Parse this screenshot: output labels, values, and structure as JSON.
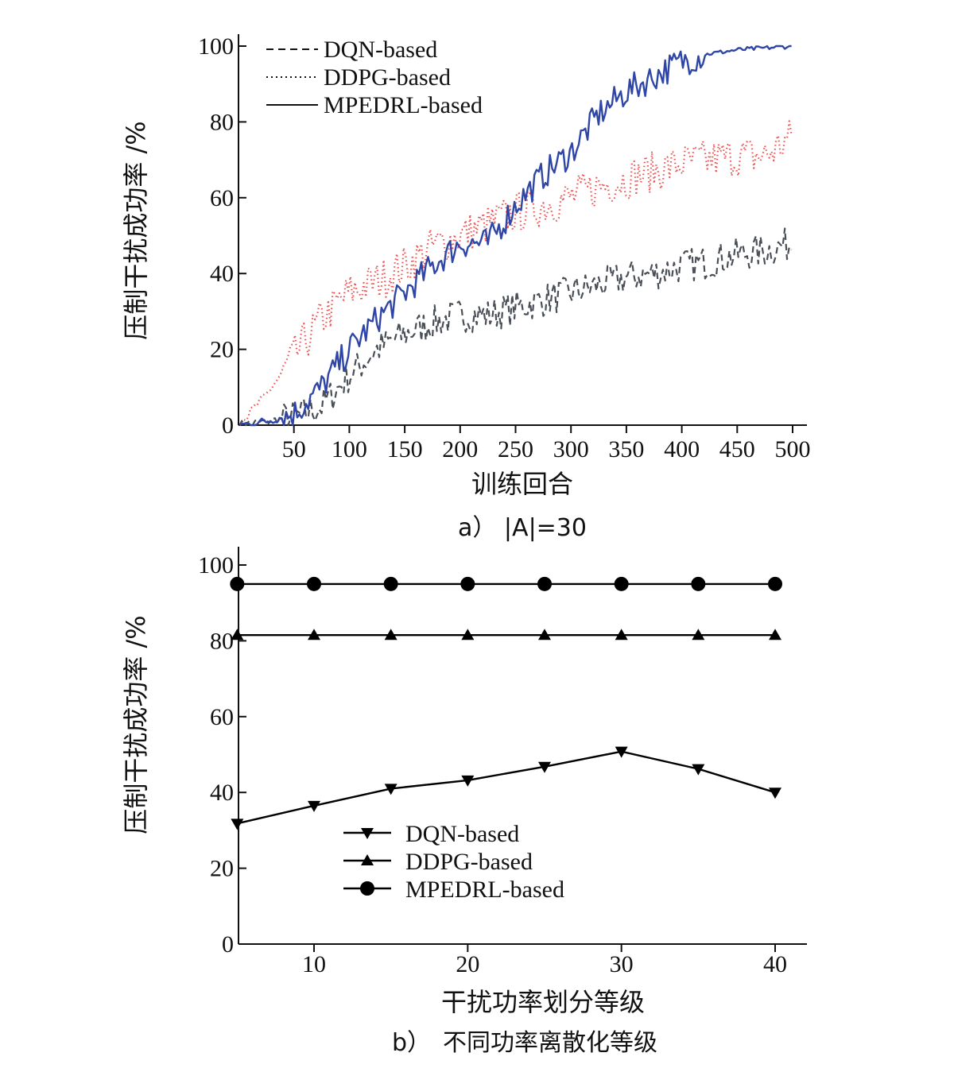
{
  "colors": {
    "dqn_a": "#4a4f57",
    "ddpg_a": "#ef4f4f",
    "mpedrl_a": "#2f46a6",
    "panel_b": "#000000"
  },
  "chart_data": [
    {
      "type": "line",
      "caption": "a） |A|=30",
      "xlabel": "训练回合",
      "ylabel": "压制干扰成功率 /%",
      "xlim": [
        0,
        510
      ],
      "ylim": [
        0,
        100
      ],
      "xticks": [
        50,
        100,
        150,
        200,
        250,
        300,
        350,
        400,
        450,
        500
      ],
      "yticks": [
        0,
        20,
        40,
        60,
        80,
        100
      ],
      "legend_position": "top-left",
      "series": [
        {
          "name": "DQN-based",
          "style": "dashed",
          "color": "#4a4f57",
          "x": [
            0,
            25,
            50,
            75,
            100,
            125,
            150,
            175,
            200,
            225,
            250,
            275,
            300,
            325,
            350,
            375,
            400,
            425,
            450,
            475,
            500
          ],
          "y": [
            0,
            1,
            2,
            5,
            13,
            20,
            24,
            27,
            29,
            29,
            31,
            33,
            35,
            37,
            39,
            40,
            42,
            43,
            45,
            46,
            48
          ]
        },
        {
          "name": "DDPG-based",
          "style": "dotted",
          "color": "#ef4f4f",
          "x": [
            0,
            25,
            50,
            75,
            100,
            125,
            150,
            175,
            200,
            225,
            250,
            275,
            300,
            325,
            350,
            375,
            400,
            425,
            450,
            475,
            500
          ],
          "y": [
            0,
            8,
            18,
            28,
            35,
            38,
            42,
            47,
            50,
            53,
            56,
            58,
            60,
            63,
            65,
            67,
            69,
            70,
            71,
            71,
            76
          ]
        },
        {
          "name": "MPEDRL-based",
          "style": "solid",
          "color": "#2f46a6",
          "x": [
            0,
            25,
            50,
            75,
            100,
            125,
            150,
            175,
            200,
            225,
            250,
            275,
            300,
            325,
            350,
            375,
            400,
            425,
            450,
            475,
            500
          ],
          "y": [
            0,
            1,
            3,
            10,
            20,
            28,
            35,
            42,
            48,
            48,
            58,
            66,
            72,
            82,
            88,
            92,
            96,
            98,
            99,
            99.5,
            100
          ]
        }
      ]
    },
    {
      "type": "line",
      "caption": "b）　不同功率离散化等级",
      "xlabel": "干扰功率划分等级",
      "ylabel": "压制干扰成功率 /%",
      "xlim": [
        5,
        41
      ],
      "ylim": [
        0,
        100
      ],
      "xticks": [
        10,
        20,
        30,
        40
      ],
      "yticks": [
        0,
        20,
        40,
        60,
        80,
        100
      ],
      "legend_position": "bottom-center",
      "x": [
        5,
        10,
        15,
        20,
        25,
        30,
        35,
        40
      ],
      "series": [
        {
          "name": "DQN-based",
          "marker": "triangle-down",
          "values": [
            31.8,
            36.5,
            41,
            43.2,
            46.8,
            50.8,
            46.2,
            40
          ]
        },
        {
          "name": "DDPG-based",
          "marker": "triangle-up",
          "values": [
            81.5,
            81.5,
            81.5,
            81.5,
            81.5,
            81.5,
            81.5,
            81.5
          ]
        },
        {
          "name": "MPEDRL-based",
          "marker": "circle",
          "values": [
            95,
            95,
            95,
            95,
            95,
            95,
            95,
            95
          ]
        }
      ]
    }
  ]
}
